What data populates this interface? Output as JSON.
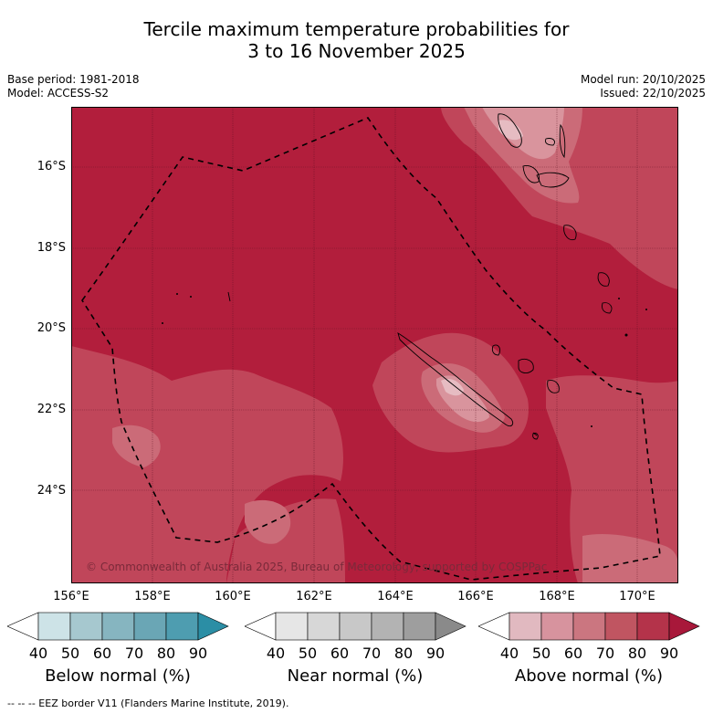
{
  "title_line1": "Tercile maximum temperature probabilities for",
  "title_line2": "3 to 16 November 2025",
  "meta": {
    "base_period": "Base period: 1981-2018",
    "model": "Model: ACCESS-S2",
    "model_run": "Model run: 20/10/2025",
    "issued": "Issued: 22/10/2025"
  },
  "axes": {
    "lat_labels": [
      "16°S",
      "18°S",
      "20°S",
      "22°S",
      "24°S"
    ],
    "lon_labels": [
      "156°E",
      "158°E",
      "160°E",
      "162°E",
      "164°E",
      "166°E",
      "168°E",
      "170°E"
    ]
  },
  "copyright": "© Commonwealth of Australia 2025, Bureau of Meteorology, supported by COSPPac",
  "colorbars": {
    "ticks": [
      "40",
      "50",
      "60",
      "70",
      "80",
      "90"
    ],
    "below": {
      "label": "Below normal (%)",
      "colors": [
        "#ffffff",
        "#cde3e7",
        "#a6c8cf",
        "#86b5c0",
        "#6aa6b5",
        "#4e9db0",
        "#2b8ea5"
      ]
    },
    "near": {
      "label": "Near normal (%)",
      "colors": [
        "#ffffff",
        "#e6e6e6",
        "#d7d7d7",
        "#c8c8c8",
        "#b3b3b3",
        "#9e9e9e",
        "#8a8a8a"
      ]
    },
    "above": {
      "label": "Above normal (%)",
      "colors": [
        "#ffffff",
        "#e1b9c0",
        "#d7939e",
        "#cb7680",
        "#c05561",
        "#b4334a",
        "#a8183a"
      ]
    }
  },
  "map_colors": {
    "dominant": "#b21e3c",
    "level70": "#c0465a",
    "level60": "#cb6b78",
    "level50": "#d9949d",
    "level40": "#e6bcc2"
  },
  "footnote": "-- -- -- EEZ border V11 (Flanders Marine Institute, 2019)."
}
